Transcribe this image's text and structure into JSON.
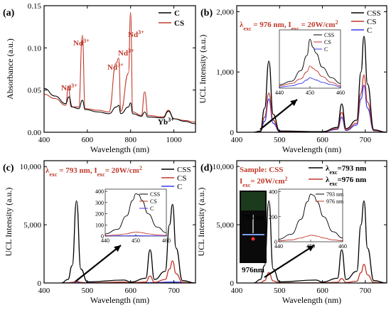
{
  "colors": {
    "CSS": "#000000",
    "CS": "#c0392b",
    "C": "#3a3af0",
    "annotation": "#c0392b"
  },
  "chart_data": [
    {
      "type": "line",
      "panel": "(a)",
      "xlabel": "Wavelength (nm)",
      "ylabel": "Absorbance (a.u.)",
      "xlim": [
        400,
        1100
      ],
      "ylim": [
        0,
        0.15
      ],
      "xticks": [
        "400",
        "600",
        "800",
        "1000"
      ],
      "yticks": [
        "0.00",
        "0.05",
        "0.10",
        "0.15"
      ],
      "legend": [
        "C",
        "CS"
      ],
      "annotations": [
        {
          "text": "Nd",
          "sup": "3+"
        },
        {
          "text": "Nd",
          "sup": "3+"
        },
        {
          "text": "Nd",
          "sup": "3+"
        },
        {
          "text": "Nd",
          "sup": "3+"
        },
        {
          "text": "Nd",
          "sup": "3+"
        },
        {
          "text": "Yb",
          "sup": "3+"
        }
      ],
      "series": [
        {
          "name": "C",
          "x": [
            400,
            450,
            500,
            515,
            530,
            560,
            577,
            590,
            650,
            700,
            735,
            745,
            755,
            790,
            800,
            810,
            850,
            865,
            880,
            950,
            975,
            1000,
            1050,
            1100
          ],
          "y": [
            0.052,
            0.043,
            0.034,
            0.042,
            0.03,
            0.028,
            0.038,
            0.027,
            0.024,
            0.022,
            0.03,
            0.032,
            0.022,
            0.03,
            0.035,
            0.022,
            0.019,
            0.024,
            0.018,
            0.017,
            0.025,
            0.016,
            0.013,
            0.01
          ]
        },
        {
          "name": "CS",
          "x": [
            400,
            450,
            500,
            512,
            525,
            560,
            577,
            590,
            650,
            700,
            733,
            745,
            755,
            790,
            800,
            810,
            850,
            865,
            880,
            950,
            975,
            1000,
            1050,
            1100
          ],
          "y": [
            0.045,
            0.04,
            0.032,
            0.055,
            0.03,
            0.03,
            0.115,
            0.028,
            0.026,
            0.024,
            0.082,
            0.088,
            0.025,
            0.07,
            0.142,
            0.024,
            0.02,
            0.048,
            0.02,
            0.018,
            0.026,
            0.016,
            0.014,
            0.012
          ]
        }
      ]
    },
    {
      "type": "line",
      "panel": "(b)",
      "xlabel": "Wavelength (nm)",
      "ylabel": "UCL Intensity (a.u.)",
      "xlim": [
        400,
        750
      ],
      "ylim": [
        0,
        2100
      ],
      "xticks": [
        "400",
        "500",
        "600",
        "700"
      ],
      "yticks": [
        "0",
        "1,000",
        "2,000"
      ],
      "annotation": {
        "lambda": "λ",
        "sub1": "exc",
        "val1": " = 976 nm, I",
        "sub2": "exc",
        "val2": " = 20W/cm",
        "sup": "2"
      },
      "legend": [
        "CSS",
        "CS",
        "C"
      ],
      "series": [
        {
          "name": "CSS",
          "x": [
            440,
            455,
            465,
            475,
            485,
            500,
            600,
            635,
            645,
            655,
            680,
            690,
            697,
            705,
            720,
            750
          ],
          "y": [
            0,
            20,
            400,
            1180,
            300,
            20,
            10,
            80,
            470,
            60,
            200,
            1000,
            1590,
            800,
            40,
            0
          ]
        },
        {
          "name": "CS",
          "x": [
            440,
            455,
            465,
            475,
            485,
            500,
            600,
            635,
            645,
            655,
            680,
            690,
            697,
            705,
            720,
            750
          ],
          "y": [
            0,
            15,
            250,
            650,
            200,
            15,
            8,
            60,
            330,
            40,
            150,
            650,
            950,
            500,
            30,
            0
          ]
        },
        {
          "name": "C",
          "x": [
            440,
            455,
            465,
            475,
            485,
            500,
            600,
            635,
            645,
            655,
            680,
            690,
            697,
            705,
            720,
            750
          ],
          "y": [
            0,
            10,
            180,
            550,
            150,
            10,
            6,
            50,
            250,
            30,
            120,
            550,
            780,
            400,
            25,
            0
          ]
        }
      ],
      "inset": {
        "xlim": [
          440,
          460
        ],
        "ylim": [
          0,
          50
        ],
        "xticks": [
          "440",
          "450",
          "460"
        ],
        "legend": [
          "CSS",
          "CS",
          "C"
        ],
        "series": [
          {
            "name": "CSS",
            "x": [
              440,
              444,
              447,
              449,
              450,
              451,
              452,
              454,
              457,
              460
            ],
            "y": [
              3,
              6,
              15,
              28,
              42,
              35,
              30,
              18,
              9,
              4
            ]
          },
          {
            "name": "CS",
            "x": [
              440,
              444,
              447,
              449,
              450,
              451,
              452,
              454,
              457,
              460
            ],
            "y": [
              2,
              4,
              8,
              14,
              19,
              17,
              15,
              10,
              5,
              2
            ]
          },
          {
            "name": "C",
            "x": [
              440,
              444,
              447,
              449,
              450,
              451,
              452,
              454,
              457,
              460
            ],
            "y": [
              1,
              2,
              4,
              7,
              9,
              8,
              7,
              5,
              3,
              1
            ]
          }
        ]
      }
    },
    {
      "type": "line",
      "panel": "(c)",
      "xlabel": "Wavelength (nm)",
      "ylabel": "UCL Intensity (a.u.)",
      "xlim": [
        400,
        750
      ],
      "ylim": [
        0,
        10500
      ],
      "xticks": [
        "400",
        "500",
        "600",
        "700"
      ],
      "yticks": [
        "0",
        "5,000",
        "10,000"
      ],
      "annotation": {
        "lambda": "λ",
        "sub1": "exc",
        "val1": " = 793 nm, I",
        "sub2": "exc",
        "val2": "= 20W/cm",
        "sup": "2"
      },
      "legend": [
        "CSS",
        "CS",
        "C"
      ],
      "series": [
        {
          "name": "CSS",
          "x": [
            440,
            455,
            465,
            475,
            485,
            500,
            585,
            600,
            635,
            645,
            655,
            680,
            690,
            697,
            705,
            720,
            750
          ],
          "y": [
            0,
            300,
            1500,
            7050,
            1200,
            100,
            250,
            80,
            400,
            2850,
            300,
            1000,
            5000,
            6750,
            3000,
            200,
            0
          ]
        },
        {
          "name": "CS",
          "x": [
            440,
            455,
            465,
            475,
            485,
            500,
            585,
            600,
            635,
            645,
            655,
            680,
            690,
            697,
            705,
            720,
            750
          ],
          "y": [
            0,
            10,
            60,
            150,
            50,
            5,
            80,
            20,
            80,
            600,
            60,
            300,
            1200,
            1900,
            800,
            50,
            0
          ]
        },
        {
          "name": "C",
          "x": [
            440,
            475,
            500,
            600,
            645,
            697,
            750
          ],
          "y": [
            0,
            40,
            10,
            5,
            30,
            80,
            0
          ]
        }
      ],
      "inset": {
        "xlim": [
          440,
          460
        ],
        "ylim": [
          0,
          420
        ],
        "xticks": [
          "440",
          "450",
          "460"
        ],
        "yticks": [
          "0",
          "100",
          "200",
          "300",
          "400"
        ],
        "legend": [
          "CSS",
          "CS",
          "C"
        ],
        "series": [
          {
            "name": "CSS",
            "x": [
              440,
              444,
              447,
              449,
              450,
              451,
              452,
              454,
              457,
              460
            ],
            "y": [
              20,
              60,
              180,
              320,
              380,
              370,
              320,
              200,
              80,
              30
            ]
          },
          {
            "name": "CS",
            "x": [
              440,
              444,
              447,
              449,
              450,
              451,
              452,
              454,
              457,
              460
            ],
            "y": [
              4,
              10,
              20,
              32,
              36,
              34,
              30,
              20,
              10,
              5
            ]
          },
          {
            "name": "C",
            "x": [
              440,
              450,
              460
            ],
            "y": [
              1,
              3,
              1
            ]
          }
        ]
      }
    },
    {
      "type": "line",
      "panel": "(d)",
      "xlabel": "Wavelength (nm)",
      "ylabel": "UCL Intensity (a.u.)",
      "xlim": [
        400,
        750
      ],
      "ylim": [
        0,
        10500
      ],
      "xticks": [
        "400",
        "500",
        "600",
        "700"
      ],
      "yticks": [
        "0",
        "5,000",
        "10,000"
      ],
      "annotation": {
        "title": "Sample: CSS",
        "pre": "I",
        "sub": "exc",
        "val": "= 20W/cm",
        "sup": "2"
      },
      "photo_labels": [
        "793nm",
        "976nm"
      ],
      "legend": [
        {
          "lambda": "λ",
          "sub": "exc",
          "val": "=793 nm"
        },
        {
          "lambda": "λ",
          "sub": "exc",
          "val": "=976 nm"
        }
      ],
      "series": [
        {
          "name": "λexc=793 nm",
          "x": [
            440,
            455,
            465,
            475,
            485,
            500,
            585,
            600,
            635,
            645,
            655,
            680,
            690,
            697,
            705,
            720,
            750
          ],
          "y": [
            0,
            300,
            1500,
            7050,
            1200,
            100,
            250,
            80,
            400,
            2850,
            300,
            1000,
            5000,
            7050,
            3000,
            200,
            0
          ]
        },
        {
          "name": "λexc=976 nm",
          "x": [
            440,
            455,
            465,
            475,
            485,
            500,
            600,
            635,
            645,
            655,
            680,
            690,
            697,
            705,
            720,
            750
          ],
          "y": [
            0,
            15,
            200,
            900,
            180,
            15,
            10,
            60,
            380,
            40,
            150,
            900,
            1600,
            700,
            40,
            0
          ]
        }
      ],
      "inset": {
        "xlim": [
          440,
          460
        ],
        "ylim": [
          0,
          420
        ],
        "xticks": [
          "440",
          "450",
          "460"
        ],
        "yticks": [
          "0",
          "200",
          "400"
        ],
        "legend": [
          "793 nm",
          "976 nm"
        ],
        "series": [
          {
            "name": "793 nm",
            "x": [
              440,
              444,
              447,
              449,
              450,
              451,
              452,
              454,
              457,
              460
            ],
            "y": [
              20,
              60,
              180,
              320,
              380,
              370,
              320,
              200,
              80,
              30
            ]
          },
          {
            "name": "976 nm",
            "x": [
              440,
              444,
              447,
              449,
              450,
              451,
              452,
              454,
              457,
              460
            ],
            "y": [
              8,
              15,
              30,
              45,
              52,
              50,
              45,
              30,
              15,
              8
            ]
          }
        ]
      }
    }
  ]
}
